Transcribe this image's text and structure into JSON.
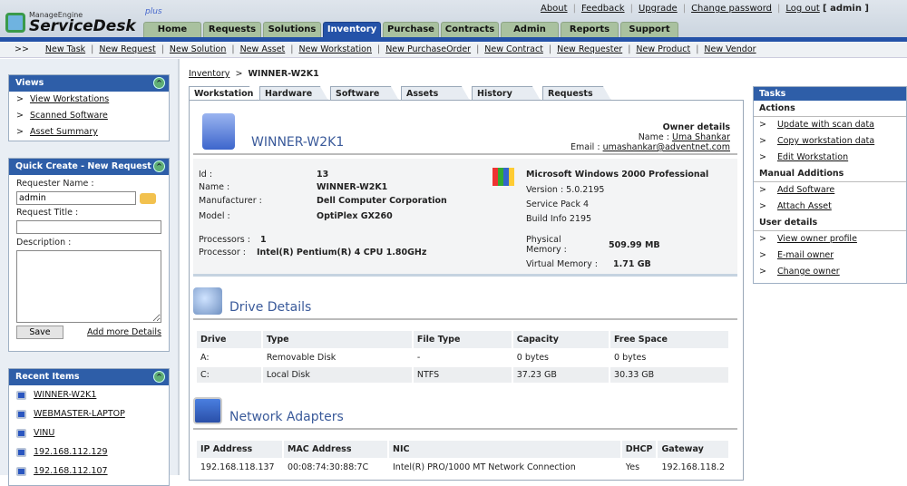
{
  "app": {
    "brand_top": "ManageEngine",
    "brand": "ServiceDesk",
    "brand_suffix": "plus"
  },
  "toplinks": [
    "About",
    "Feedback",
    "Upgrade",
    "Change password",
    "Log out"
  ],
  "user": "[ admin ]",
  "tabs": [
    {
      "label": "Home"
    },
    {
      "label": "Requests"
    },
    {
      "label": "Solutions"
    },
    {
      "label": "Inventory",
      "active": true
    },
    {
      "label": "Purchase"
    },
    {
      "label": "Contracts"
    },
    {
      "label": "Admin"
    },
    {
      "label": "Reports"
    },
    {
      "label": "Support"
    }
  ],
  "subnav": {
    "prefix": ">>",
    "items": [
      "New Task",
      "New Request",
      "New Solution",
      "New Asset",
      "New Workstation",
      "New PurchaseOrder",
      "New Contract",
      "New Requester",
      "New Product",
      "New Vendor"
    ]
  },
  "views": {
    "title": "Views",
    "items": [
      "View Workstations",
      "Scanned Software",
      "Asset Summary"
    ]
  },
  "quick_create": {
    "title": "Quick Create - New Request",
    "requester_label": "Requester Name :",
    "requester_value": "admin",
    "title_label": "Request Title :",
    "title_value": "",
    "description_label": "Description :",
    "save": "Save",
    "more": "Add more Details"
  },
  "recent": {
    "title": "Recent Items",
    "items": [
      "WINNER-W2K1",
      "WEBMASTER-LAPTOP",
      "VINU",
      "192.168.112.129",
      "192.168.112.107"
    ]
  },
  "breadcrumb": {
    "parent": "Inventory",
    "sep": ">",
    "current": "WINNER-W2K1"
  },
  "detail_tabs": [
    "Workstation",
    "Hardware",
    "Software",
    "Assets",
    "History",
    "Requests"
  ],
  "workstation": {
    "name": "WINNER-W2K1",
    "owner": {
      "heading": "Owner details",
      "name_label": "Name :",
      "name": "Uma Shankar",
      "email_label": "Email :",
      "email": "umashankar@adventnet.com"
    },
    "fields": [
      {
        "label": "Id :",
        "value": "13"
      },
      {
        "label": "Name :",
        "value": "WINNER-W2K1"
      },
      {
        "label": "Manufacturer :",
        "value": "Dell Computer Corporation"
      },
      {
        "label": "Model :",
        "value": "OptiPlex GX260"
      }
    ],
    "processors_label": "Processors :",
    "processors": "1",
    "processor_label": "Processor :",
    "processor": "Intel(R) Pentium(R) 4 CPU 1.80GHz",
    "os": {
      "name": "Microsoft Windows 2000 Professional",
      "version": "Version : 5.0.2195",
      "sp": "Service Pack 4",
      "build": "Build Info 2195"
    },
    "phys_label": "Physical Memory :",
    "phys": "509.99 MB",
    "virt_label": "Virtual Memory :",
    "virt": "1.71 GB"
  },
  "drives": {
    "title": "Drive Details",
    "headers": [
      "Drive",
      "Type",
      "File Type",
      "Capacity",
      "Free Space"
    ],
    "rows": [
      [
        "A:",
        "Removable Disk",
        "-",
        "0 bytes",
        "0 bytes"
      ],
      [
        "C:",
        "Local Disk",
        "NTFS",
        "37.23 GB",
        "30.33 GB"
      ]
    ]
  },
  "network": {
    "title": "Network Adapters",
    "headers": [
      "IP Address",
      "MAC Address",
      "NIC",
      "DHCP",
      "Gateway"
    ],
    "rows": [
      [
        "192.168.118.137",
        "00:08:74:30:88:7C",
        "Intel(R) PRO/1000 MT Network Connection",
        "Yes",
        "192.168.118.2"
      ]
    ]
  },
  "tasks": {
    "title": "Tasks",
    "groups": [
      {
        "title": "Actions",
        "items": [
          "Update with scan data",
          "Copy workstation data",
          "Edit Workstation"
        ]
      },
      {
        "title": "Manual Additions",
        "items": [
          "Add Software",
          "Attach Asset"
        ]
      },
      {
        "title": "User details",
        "items": [
          "View owner profile",
          "E-mail owner",
          "Change owner"
        ]
      }
    ]
  },
  "colors": {
    "primary_blue": "#2452a8",
    "tab_green": "#a9c19f"
  }
}
